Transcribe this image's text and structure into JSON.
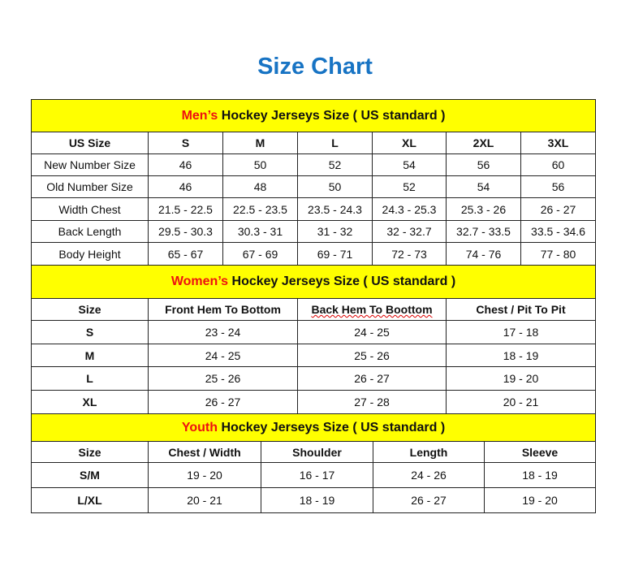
{
  "title": "Size Chart",
  "colors": {
    "title": "#1874c4",
    "section_bg": "#ffff00",
    "highlight": "#ee1111"
  },
  "men": {
    "highlight": "Men’s",
    "heading": " Hockey Jerseys Size ( US standard )",
    "header": [
      "US Size",
      "S",
      "M",
      "L",
      "XL",
      "2XL",
      "3XL"
    ],
    "rows": [
      [
        "New Number Size",
        "46",
        "50",
        "52",
        "54",
        "56",
        "60"
      ],
      [
        "Old Number Size",
        "46",
        "48",
        "50",
        "52",
        "54",
        "56"
      ],
      [
        "Width Chest",
        "21.5 - 22.5",
        "22.5 - 23.5",
        "23.5 - 24.3",
        "24.3 - 25.3",
        "25.3 - 26",
        "26 - 27"
      ],
      [
        "Back Length",
        "29.5 - 30.3",
        "30.3 - 31",
        "31 - 32",
        "32 - 32.7",
        "32.7 - 33.5",
        "33.5 - 34.6"
      ],
      [
        "Body Height",
        "65 - 67",
        "67 - 69",
        "69 - 71",
        "72 - 73",
        "74 - 76",
        "77 - 80"
      ]
    ]
  },
  "women": {
    "highlight": "Women’s",
    "heading": " Hockey Jerseys Size ( US standard )",
    "header": [
      "Size",
      "Front Hem To Bottom",
      "Back Hem To Boottom",
      "Chest / Pit To Pit"
    ],
    "rows": [
      [
        "S",
        "23 - 24",
        "24 - 25",
        "17 - 18"
      ],
      [
        "M",
        "24 - 25",
        "25 - 26",
        "18 - 19"
      ],
      [
        "L",
        "25 - 26",
        "26 - 27",
        "19 - 20"
      ],
      [
        "XL",
        "26 - 27",
        "27 - 28",
        "20 - 21"
      ]
    ]
  },
  "youth": {
    "highlight": "Youth",
    "heading": " Hockey Jerseys Size ( US standard )",
    "header": [
      "Size",
      "Chest / Width",
      "Shoulder",
      "Length",
      "Sleeve"
    ],
    "rows": [
      [
        "S/M",
        "19 - 20",
        "16 - 17",
        "24 - 26",
        "18 - 19"
      ],
      [
        "L/XL",
        "20 - 21",
        "18 - 19",
        "26 - 27",
        "19 - 20"
      ]
    ]
  }
}
